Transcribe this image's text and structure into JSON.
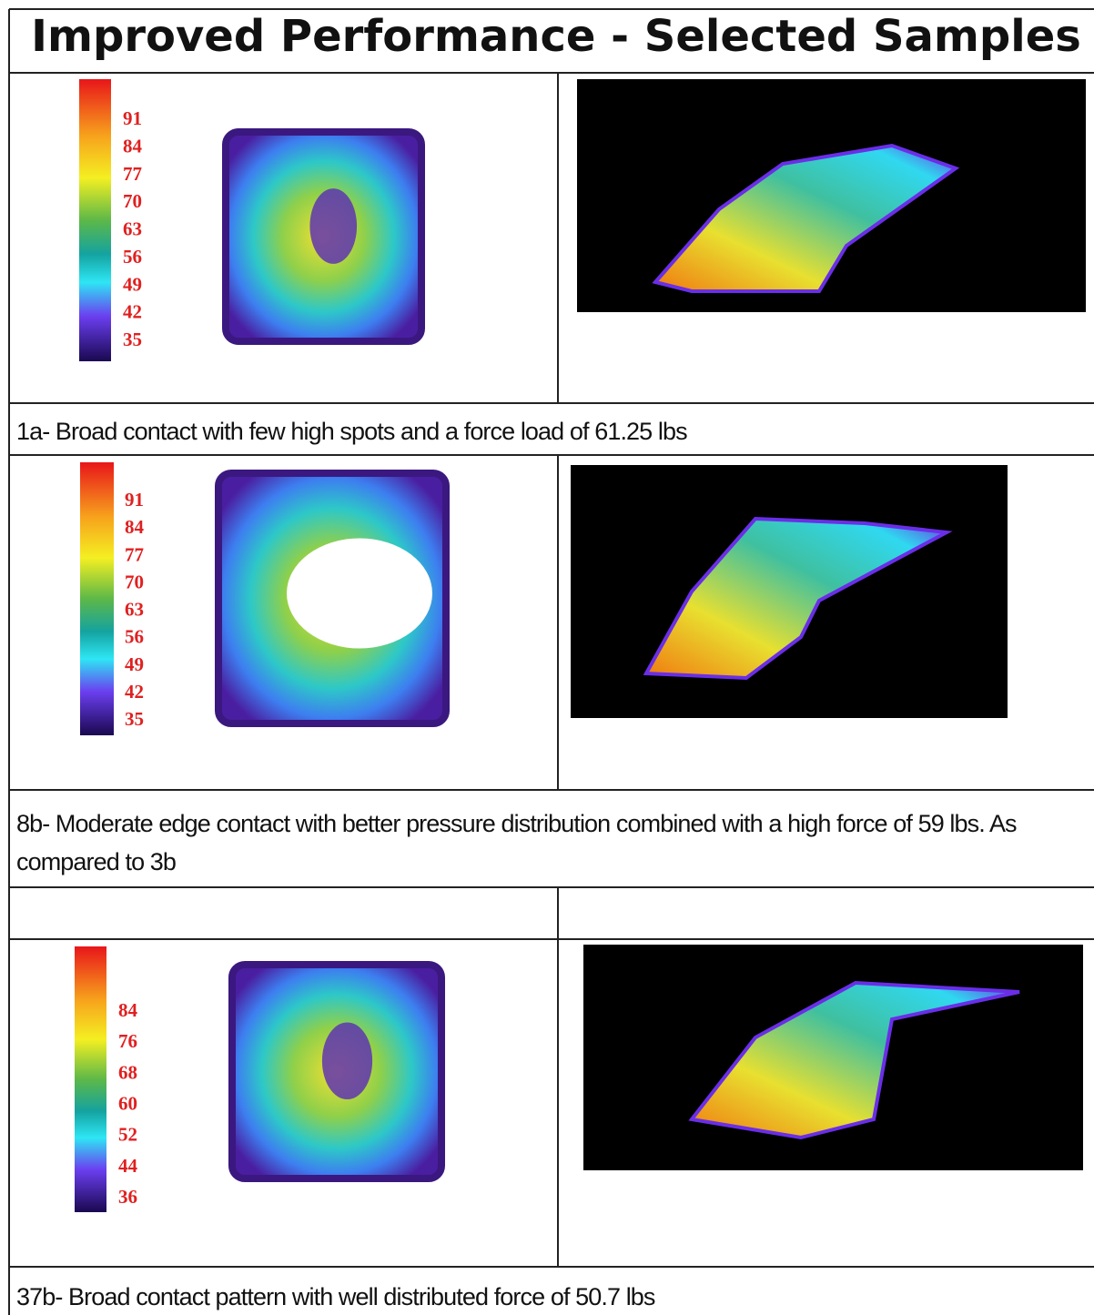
{
  "title": "Improved Performance - Selected Samples",
  "samples": [
    {
      "scale": [
        91,
        84,
        77,
        70,
        63,
        56,
        49,
        42,
        35
      ],
      "caption": "1a- Broad contact with few high spots and a force load of 61.25 lbs"
    },
    {
      "scale": [
        91,
        84,
        77,
        70,
        63,
        56,
        49,
        42,
        35
      ],
      "caption": "8b- Moderate edge contact with better pressure distribution combined with a high force of 59 lbs. As compared to 3b"
    },
    {
      "scale": [
        84,
        76,
        68,
        60,
        52,
        44,
        36
      ],
      "caption": "37b- Broad contact pattern with well distributed force of 50.7 lbs"
    }
  ]
}
